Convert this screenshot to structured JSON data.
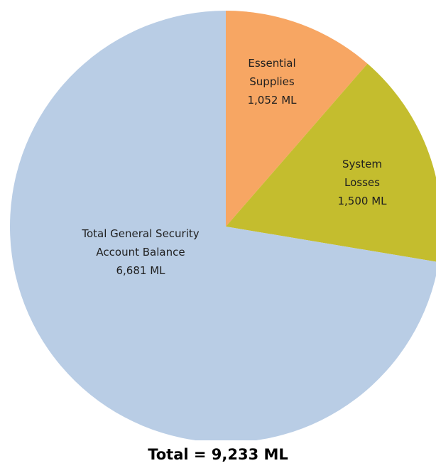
{
  "chart_data": {
    "type": "pie",
    "title": "",
    "unit": "ML",
    "slices": [
      {
        "label_lines": [
          "Essential",
          "Supplies",
          "1,052 ML"
        ],
        "value": 1052,
        "color": "#F7A663"
      },
      {
        "label_lines": [
          "System",
          "Losses",
          "1,500 ML"
        ],
        "value": 1500,
        "color": "#C4BD2E"
      },
      {
        "label_lines": [
          "Total General Security",
          "Account Balance",
          "6,681 ML"
        ],
        "value": 6681,
        "color": "#B9CDE5"
      }
    ],
    "start_angle_deg": 0,
    "direction": "clockwise",
    "total_text": "Total = 9,233 ML"
  }
}
